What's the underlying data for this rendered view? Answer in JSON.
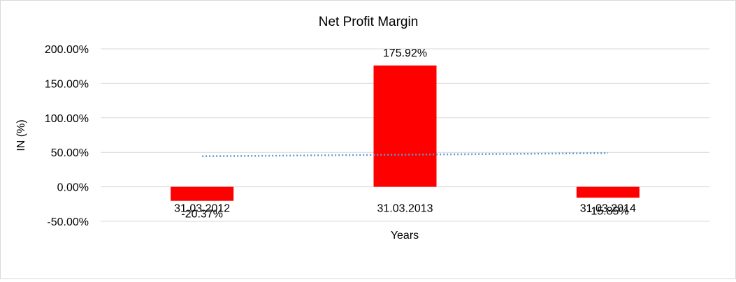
{
  "chart_data": {
    "type": "bar",
    "title": "Net Profit Margin",
    "xlabel": "Years",
    "ylabel": "IN (%)",
    "categories": [
      "31.03.2012",
      "31.03.2013",
      "31.03.2014"
    ],
    "series": [
      {
        "values": [
          -20.37,
          175.92,
          -15.85
        ],
        "color": "#ff0000"
      }
    ],
    "data_labels": [
      "-20.37%",
      "175.92%",
      "-15.85%"
    ],
    "trendline": {
      "type": "linear",
      "style": "dotted",
      "color": "#5b9bd5"
    },
    "ylim": [
      -50,
      200
    ],
    "yticks": [
      -50,
      0,
      50,
      100,
      150,
      200
    ],
    "ytick_labels": [
      "-50.00%",
      "0.00%",
      "50.00%",
      "100.00%",
      "150.00%",
      "200.00%"
    ],
    "grid": true,
    "legend": "none"
  }
}
